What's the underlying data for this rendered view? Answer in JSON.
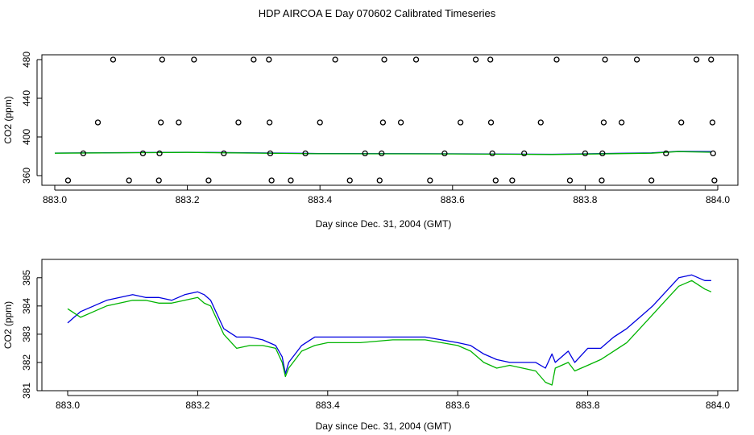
{
  "title": "HDP AIRCOA E  Day 070602  Calibrated Timeseries",
  "colors": {
    "blue": "#0000e0",
    "green": "#00b400",
    "axis": "#000000"
  },
  "chart_data": [
    {
      "type": "scatter",
      "xlabel": "Day since Dec. 31, 2004 (GMT)",
      "ylabel": "CO2 (ppm)",
      "xlim": [
        883.0,
        884.0
      ],
      "ylim": [
        350,
        485
      ],
      "xticks": [
        "883.0",
        "883.2",
        "883.4",
        "883.6",
        "883.8",
        "884.0"
      ],
      "yticks": [
        "360",
        "400",
        "440",
        "480"
      ],
      "points": [
        [
          883.02,
          355
        ],
        [
          883.112,
          355
        ],
        [
          883.157,
          355
        ],
        [
          883.232,
          355
        ],
        [
          883.327,
          355
        ],
        [
          883.356,
          355
        ],
        [
          883.445,
          355
        ],
        [
          883.49,
          355
        ],
        [
          883.566,
          355
        ],
        [
          883.665,
          355
        ],
        [
          883.69,
          355
        ],
        [
          883.777,
          355
        ],
        [
          883.825,
          355
        ],
        [
          883.9,
          355
        ],
        [
          883.995,
          355
        ],
        [
          883.043,
          383
        ],
        [
          883.133,
          383
        ],
        [
          883.158,
          383
        ],
        [
          883.255,
          383
        ],
        [
          883.325,
          383
        ],
        [
          883.378,
          383
        ],
        [
          883.468,
          383
        ],
        [
          883.493,
          383
        ],
        [
          883.588,
          383
        ],
        [
          883.66,
          383
        ],
        [
          883.708,
          383
        ],
        [
          883.8,
          383
        ],
        [
          883.826,
          383
        ],
        [
          883.922,
          383
        ],
        [
          883.993,
          383
        ],
        [
          883.065,
          415
        ],
        [
          883.16,
          415
        ],
        [
          883.187,
          415
        ],
        [
          883.277,
          415
        ],
        [
          883.324,
          415
        ],
        [
          883.4,
          415
        ],
        [
          883.495,
          415
        ],
        [
          883.522,
          415
        ],
        [
          883.612,
          415
        ],
        [
          883.658,
          415
        ],
        [
          883.733,
          415
        ],
        [
          883.828,
          415
        ],
        [
          883.855,
          415
        ],
        [
          883.945,
          415
        ],
        [
          883.992,
          415
        ],
        [
          883.088,
          480
        ],
        [
          883.162,
          480
        ],
        [
          883.21,
          480
        ],
        [
          883.3,
          480
        ],
        [
          883.323,
          480
        ],
        [
          883.423,
          480
        ],
        [
          883.497,
          480
        ],
        [
          883.545,
          480
        ],
        [
          883.635,
          480
        ],
        [
          883.657,
          480
        ],
        [
          883.757,
          480
        ],
        [
          883.83,
          480
        ],
        [
          883.878,
          480
        ],
        [
          883.968,
          480
        ],
        [
          883.99,
          480
        ]
      ],
      "series": [
        {
          "color": "#0000e0",
          "x": [
            883.0,
            883.2,
            883.4,
            883.6,
            883.75,
            883.9,
            883.94,
            883.99
          ],
          "y": [
            383.3,
            384.2,
            382.8,
            382.6,
            382.1,
            383.5,
            385.1,
            384.9
          ]
        },
        {
          "color": "#00b400",
          "x": [
            883.0,
            883.2,
            883.4,
            883.6,
            883.75,
            883.9,
            883.94,
            883.99
          ],
          "y": [
            383.2,
            384.0,
            382.6,
            382.4,
            381.8,
            383.2,
            384.8,
            384.2
          ]
        }
      ]
    },
    {
      "type": "line",
      "xlabel": "Day since Dec. 31, 2004 (GMT)",
      "ylabel": "CO2 (ppm)",
      "xlim": [
        883.0,
        884.0
      ],
      "ylim": [
        381,
        385.65
      ],
      "xticks": [
        "883.0",
        "883.2",
        "883.4",
        "883.6",
        "883.8",
        "884.0"
      ],
      "yticks": [
        "381",
        "382",
        "383",
        "384",
        "385"
      ],
      "series": [
        {
          "color": "#0000e0",
          "x": [
            883.0,
            883.02,
            883.04,
            883.06,
            883.08,
            883.1,
            883.12,
            883.14,
            883.16,
            883.18,
            883.2,
            883.21,
            883.22,
            883.24,
            883.26,
            883.28,
            883.3,
            883.32,
            883.33,
            883.335,
            883.34,
            883.36,
            883.38,
            883.4,
            883.45,
            883.5,
            883.55,
            883.6,
            883.62,
            883.64,
            883.66,
            883.68,
            883.7,
            883.72,
            883.735,
            883.745,
            883.75,
            883.77,
            883.78,
            883.8,
            883.82,
            883.84,
            883.86,
            883.88,
            883.9,
            883.92,
            883.94,
            883.96,
            883.98,
            883.99
          ],
          "y": [
            383.4,
            383.8,
            384.0,
            384.2,
            384.3,
            384.4,
            384.3,
            384.3,
            384.2,
            384.4,
            384.5,
            384.4,
            384.2,
            383.2,
            382.9,
            382.9,
            382.8,
            382.6,
            382.2,
            381.6,
            382.0,
            382.6,
            382.9,
            382.9,
            382.9,
            382.9,
            382.9,
            382.7,
            382.6,
            382.3,
            382.1,
            382.0,
            382.0,
            382.0,
            381.8,
            382.3,
            382.0,
            382.4,
            382.0,
            382.5,
            382.5,
            382.9,
            383.2,
            383.6,
            384.0,
            384.5,
            385.0,
            385.1,
            384.9,
            384.9
          ]
        },
        {
          "color": "#00b400",
          "x": [
            883.0,
            883.02,
            883.04,
            883.06,
            883.08,
            883.1,
            883.12,
            883.14,
            883.16,
            883.18,
            883.2,
            883.21,
            883.22,
            883.24,
            883.26,
            883.28,
            883.3,
            883.32,
            883.33,
            883.335,
            883.34,
            883.36,
            883.38,
            883.4,
            883.45,
            883.5,
            883.55,
            883.6,
            883.62,
            883.64,
            883.66,
            883.68,
            883.7,
            883.72,
            883.735,
            883.745,
            883.75,
            883.77,
            883.78,
            883.8,
            883.82,
            883.84,
            883.86,
            883.88,
            883.9,
            883.92,
            883.94,
            883.96,
            883.98,
            883.99
          ],
          "y": [
            383.9,
            383.6,
            383.8,
            384.0,
            384.1,
            384.2,
            384.2,
            384.1,
            384.1,
            384.2,
            384.3,
            384.1,
            384.0,
            383.0,
            382.5,
            382.6,
            382.6,
            382.5,
            382.0,
            381.5,
            381.8,
            382.4,
            382.6,
            382.7,
            382.7,
            382.8,
            382.8,
            382.6,
            382.4,
            382.0,
            381.8,
            381.9,
            381.8,
            381.7,
            381.3,
            381.2,
            381.8,
            382.0,
            381.7,
            381.9,
            382.1,
            382.4,
            382.7,
            383.2,
            383.7,
            384.2,
            384.7,
            384.9,
            384.6,
            384.5
          ]
        }
      ]
    }
  ]
}
